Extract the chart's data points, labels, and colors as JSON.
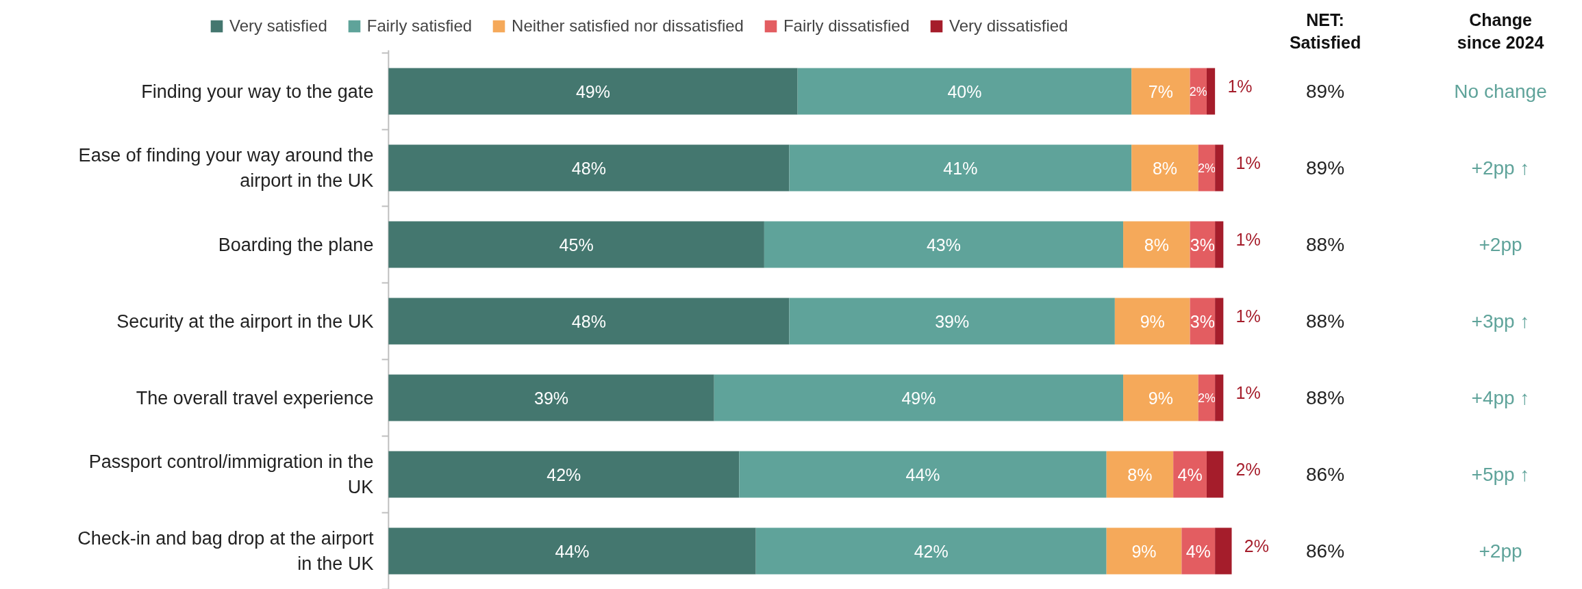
{
  "chart_data": {
    "type": "bar",
    "orientation": "horizontal",
    "stacked": true,
    "legend": "top",
    "categories": [
      "Finding your way to the gate",
      "Ease of finding your way around the airport in the UK",
      "Boarding the plane",
      "Security at the airport in the UK",
      "The overall travel experience",
      "Passport control/immigration in the UK",
      "Check-in and bag drop at the airport in the UK"
    ],
    "series": [
      {
        "name": "Very satisfied",
        "color": "#44776f",
        "values": [
          49,
          48,
          45,
          48,
          39,
          42,
          44
        ],
        "value_labels": [
          "49%",
          "48%",
          "45%",
          "48%",
          "39%",
          "42%",
          "44%"
        ]
      },
      {
        "name": "Fairly satisfied",
        "color": "#5fa39a",
        "values": [
          40,
          41,
          43,
          39,
          49,
          44,
          42
        ],
        "value_labels": [
          "40%",
          "41%",
          "43%",
          "39%",
          "49%",
          "44%",
          "42%"
        ]
      },
      {
        "name": "Neither satisfied nor dissatisfied",
        "color": "#f5a95a",
        "values": [
          7,
          8,
          8,
          9,
          9,
          8,
          9
        ],
        "value_labels": [
          "7%",
          "8%",
          "8%",
          "9%",
          "9%",
          "8%",
          "9%"
        ]
      },
      {
        "name": "Fairly dissatisfied",
        "color": "#e35d61",
        "values": [
          2,
          2,
          3,
          3,
          2,
          4,
          4
        ],
        "value_labels": [
          "2%",
          "2%",
          "3%",
          "3%",
          "2%",
          "4%",
          "4%"
        ]
      },
      {
        "name": "Very dissatisfied",
        "color": "#a51d2b",
        "values": [
          1,
          1,
          1,
          1,
          1,
          2,
          2
        ],
        "value_labels": [
          "1%",
          "1%",
          "1%",
          "1%",
          "1%",
          "2%",
          "2%"
        ]
      }
    ],
    "annotations": [
      "NET: Satisfied",
      "Change since 2024",
      "89%",
      "No change",
      "89%",
      "+2pp ↑",
      "88%",
      "+2pp",
      "88%",
      "+3pp ↑",
      "88%",
      "+4pp ↑",
      "86%",
      "+5pp ↑",
      "86%",
      "+2pp"
    ]
  }
}
